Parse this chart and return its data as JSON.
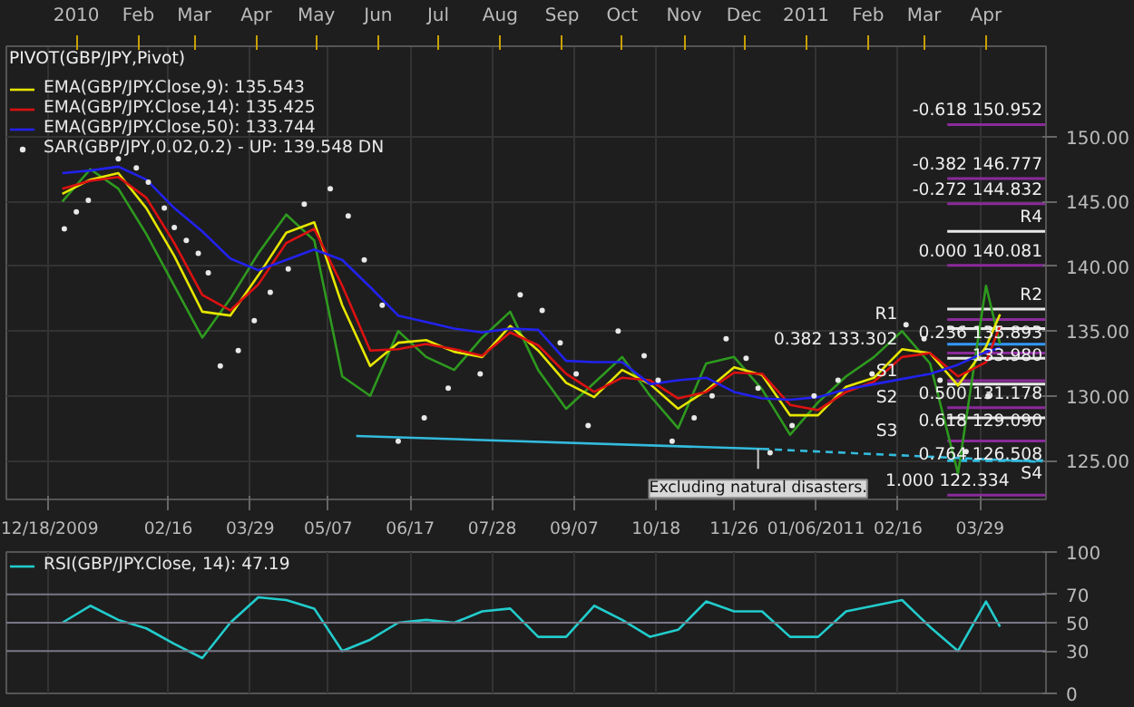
{
  "chart_data": [
    {
      "type": "line",
      "legend": "top left",
      "grid": true,
      "x": [
        "2009-12-25",
        "2010-01-08",
        "2010-01-22",
        "2010-02-05",
        "2010-02-19",
        "2010-03-05",
        "2010-03-19",
        "2010-04-02",
        "2010-04-16",
        "2010-04-30",
        "2010-05-14",
        "2010-05-28",
        "2010-06-11",
        "2010-06-25",
        "2010-07-09",
        "2010-07-23",
        "2010-08-06",
        "2010-08-20",
        "2010-09-03",
        "2010-09-17",
        "2010-10-01",
        "2010-10-15",
        "2010-10-29",
        "2010-11-12",
        "2010-11-26",
        "2010-12-10",
        "2010-12-24",
        "2011-01-07",
        "2011-01-21",
        "2011-02-04",
        "2011-02-18",
        "2011-03-04",
        "2011-03-18",
        "2011-04-01",
        "2011-04-08"
      ],
      "series": [
        {
          "color": "#2e9a1f",
          "values": [
            145.0,
            147.5,
            146.0,
            142.5,
            138.5,
            134.5,
            137.5,
            141.0,
            144.0,
            142.0,
            131.5,
            130.0,
            135.0,
            133.0,
            132.0,
            134.5,
            136.5,
            132.0,
            129.0,
            131.0,
            133.0,
            130.0,
            127.5,
            132.5,
            133.0,
            130.5,
            127.0,
            129.5,
            131.5,
            133.0,
            135.0,
            132.5,
            124.0,
            138.5,
            134.0
          ]
        },
        {
          "name": "EMA(GBP/JPY.Close,9): 135.543",
          "color": "#e6e600",
          "values": [
            145.6,
            146.7,
            147.2,
            144.5,
            140.8,
            136.5,
            136.2,
            139.3,
            142.6,
            143.4,
            137.0,
            132.3,
            134.1,
            134.3,
            133.4,
            133.0,
            135.4,
            133.5,
            131.0,
            129.9,
            132.0,
            130.9,
            129.0,
            130.4,
            132.2,
            131.6,
            128.5,
            128.5,
            130.7,
            131.4,
            133.6,
            133.3,
            130.8,
            133.8,
            136.3
          ]
        },
        {
          "name": "EMA(GBP/JPY.Close,14): 135.425",
          "color": "#dd1111",
          "values": [
            146.0,
            146.6,
            146.9,
            145.3,
            141.8,
            137.8,
            136.6,
            138.6,
            141.8,
            142.9,
            138.5,
            133.5,
            133.6,
            134.0,
            133.6,
            133.1,
            134.9,
            133.9,
            131.7,
            130.3,
            131.4,
            131.2,
            129.8,
            130.3,
            131.8,
            131.7,
            129.3,
            128.9,
            130.3,
            131.1,
            133.0,
            133.3,
            131.5,
            132.6,
            135.4
          ]
        },
        {
          "name": "EMA(GBP/JPY.Close,50): 133.744",
          "color": "#2222ee",
          "values": [
            147.2,
            147.4,
            147.7,
            146.7,
            144.5,
            142.7,
            140.6,
            139.7,
            140.5,
            141.3,
            140.5,
            138.4,
            136.2,
            135.7,
            135.2,
            134.9,
            135.2,
            135.1,
            132.7,
            132.6,
            132.6,
            130.9,
            131.2,
            131.4,
            130.3,
            129.8,
            129.7,
            129.9,
            130.5,
            130.9,
            131.3,
            131.7,
            132.4,
            133.4,
            133.7
          ]
        },
        {
          "name": "SAR(GBP/JPY,0.02,0.2) - UP: 139.548 DN",
          "type": "scatter",
          "marker": "circle",
          "color": "#e8e8e8",
          "x": [
            "2009-12-26",
            "2010-01-01",
            "2010-01-07",
            "2010-01-22",
            "2010-01-31",
            "2010-02-06",
            "2010-02-14",
            "2010-02-19",
            "2010-02-25",
            "2010-03-03",
            "2010-03-08",
            "2010-03-14",
            "2010-03-23",
            "2010-03-31",
            "2010-04-08",
            "2010-04-17",
            "2010-04-25",
            "2010-05-08",
            "2010-05-17",
            "2010-05-25",
            "2010-06-03",
            "2010-06-11",
            "2010-06-24",
            "2010-07-06",
            "2010-07-22",
            "2010-08-11",
            "2010-08-22",
            "2010-08-31",
            "2010-09-08",
            "2010-09-14",
            "2010-09-29",
            "2010-10-12",
            "2010-10-19",
            "2010-10-26",
            "2010-11-06",
            "2010-11-15",
            "2010-11-22",
            "2010-12-02",
            "2010-12-08",
            "2010-12-14",
            "2010-12-25",
            "2011-01-05",
            "2011-01-17",
            "2011-02-03",
            "2011-02-20",
            "2011-03-01",
            "2011-03-09",
            "2011-03-22",
            "2011-04-02"
          ],
          "values": [
            142.9,
            144.2,
            145.1,
            148.3,
            147.6,
            146.5,
            144.5,
            143.0,
            142.0,
            141.0,
            139.5,
            132.3,
            133.5,
            135.8,
            138.0,
            139.8,
            144.8,
            146.0,
            143.9,
            140.5,
            137.0,
            126.5,
            128.3,
            130.6,
            131.7,
            137.8,
            136.6,
            134.1,
            131.7,
            127.7,
            135.0,
            133.1,
            131.2,
            126.5,
            128.3,
            130.0,
            134.4,
            132.9,
            130.6,
            125.6,
            127.7,
            130.0,
            131.2,
            131.7,
            135.5,
            134.4,
            131.2,
            125.7,
            130.0
          ]
        },
        {
          "color": "#33bbdd",
          "x": [
            "2010-05-21",
            "2010-12-10"
          ],
          "values": [
            126.9,
            125.9
          ]
        },
        {
          "color": "#33bbdd",
          "line_style": "dashed",
          "x": [
            "2010-12-10",
            "2011-04-29"
          ],
          "values": [
            125.9,
            124.9
          ]
        }
      ],
      "xlim": [
        "2009-11-27",
        "2011-05-01"
      ],
      "x2lim": [
        "2009-11-27",
        "2011-05-01"
      ],
      "ylim": [
        122,
        157
      ],
      "yticks": [
        {
          "value": 125,
          "label": "125.00"
        },
        {
          "value": 130,
          "label": "130.00"
        },
        {
          "value": 135,
          "label": "135.00"
        },
        {
          "value": 140,
          "label": "140.00"
        },
        {
          "value": 145,
          "label": "145.00"
        },
        {
          "value": 150,
          "label": "150.00"
        }
      ],
      "xticks": [
        {
          "value": "2009-12-18",
          "label": "12/18/2009"
        },
        {
          "value": "2010-02-16",
          "label": "02/16"
        },
        {
          "value": "2010-03-29",
          "label": "03/29"
        },
        {
          "value": "2010-05-07",
          "label": "05/07"
        },
        {
          "value": "2010-06-17",
          "label": "06/17"
        },
        {
          "value": "2010-07-28",
          "label": "07/28"
        },
        {
          "value": "2010-09-07",
          "label": "09/07"
        },
        {
          "value": "2010-10-18",
          "label": "10/18"
        },
        {
          "value": "2010-11-26",
          "label": "11/26"
        },
        {
          "value": "2011-01-06",
          "label": "01/06/2011"
        },
        {
          "value": "2011-02-16",
          "label": "02/16"
        },
        {
          "value": "2011-03-29",
          "label": "03/29"
        }
      ],
      "x2ticks": [
        {
          "value": "2010-01-01",
          "label": "2010"
        },
        {
          "value": "2010-02-01",
          "label": "Feb"
        },
        {
          "value": "2010-03-01",
          "label": "Mar"
        },
        {
          "value": "2010-04-01",
          "label": "Apr"
        },
        {
          "value": "2010-05-01",
          "label": "May"
        },
        {
          "value": "2010-06-01",
          "label": "Jun"
        },
        {
          "value": "2010-07-01",
          "label": "Jul"
        },
        {
          "value": "2010-08-01",
          "label": "Aug"
        },
        {
          "value": "2010-09-01",
          "label": "Sep"
        },
        {
          "value": "2010-10-01",
          "label": "Oct"
        },
        {
          "value": "2010-11-01",
          "label": "Nov"
        },
        {
          "value": "2010-12-01",
          "label": "Dec"
        },
        {
          "value": "2011-01-01",
          "label": "2011"
        },
        {
          "value": "2011-02-01",
          "label": "Feb"
        },
        {
          "value": "2011-03-01",
          "label": "Mar"
        },
        {
          "value": "2011-04-01",
          "label": "Apr"
        }
      ],
      "ref_lines": [
        {
          "axis": "y",
          "value": 150.952,
          "label": "-0.618 150.952",
          "color": "#8a2a9a"
        },
        {
          "axis": "y",
          "value": 146.777,
          "label": "-0.382 146.777",
          "color": "#8a2a9a"
        },
        {
          "axis": "y",
          "value": 144.832,
          "label": "-0.272 144.832",
          "color": "#8a2a9a"
        },
        {
          "axis": "y",
          "value": 142.7,
          "label": "R4",
          "color": "#e8e8e8"
        },
        {
          "axis": "y",
          "value": 140.081,
          "label": "0.000 140.081",
          "color": "#8a2a9a"
        },
        {
          "axis": "y",
          "value": 136.7,
          "label": "R2",
          "color": "#e8e8e8"
        },
        {
          "axis": "y",
          "value": 135.893,
          "label": "0.236 135.893",
          "color": "#8a2a9a"
        },
        {
          "axis": "y",
          "value": 135.2,
          "label": "R1",
          "color": "#e8e8e8"
        },
        {
          "axis": "y",
          "value": 133.98,
          "label": "133.980",
          "color": "#3399ff"
        },
        {
          "axis": "y",
          "value": 133.302,
          "label": "0.382 133.302",
          "color": "#8a2a9a"
        },
        {
          "axis": "y",
          "value": 132.9,
          "label": "S1",
          "color": "#e8e8e8"
        },
        {
          "axis": "y",
          "value": 131.178,
          "label": "0.500 131.178",
          "color": "#8a2a9a"
        },
        {
          "axis": "y",
          "value": 130.9,
          "label": "S2",
          "color": "#e8e8e8"
        },
        {
          "axis": "y",
          "value": 129.09,
          "label": "0.618 129.090",
          "color": "#8a2a9a"
        },
        {
          "axis": "y",
          "value": 128.3,
          "label": "S3",
          "color": "#e8e8e8"
        },
        {
          "axis": "y",
          "value": 126.508,
          "label": "0.764 126.508",
          "color": "#8a2a9a"
        },
        {
          "axis": "y",
          "value": 125.0,
          "label": "S4",
          "color": "#33bbdd",
          "line_style": "dashed"
        },
        {
          "axis": "y",
          "value": 122.334,
          "label": "1.000 122.334",
          "color": "#8a2a9a"
        }
      ],
      "annotations": [
        "PIVOT(GBP/JPY,Pivot)",
        {
          "text": "Excluding natural disasters.",
          "x": "2010-12-08",
          "y": 125.9
        }
      ]
    },
    {
      "type": "line",
      "legend": "top left",
      "grid": "x",
      "tick_labels": "y",
      "x": [
        "2009-12-25",
        "2010-01-08",
        "2010-01-22",
        "2010-02-05",
        "2010-02-19",
        "2010-03-05",
        "2010-03-19",
        "2010-04-02",
        "2010-04-16",
        "2010-04-30",
        "2010-05-14",
        "2010-05-28",
        "2010-06-11",
        "2010-06-25",
        "2010-07-09",
        "2010-07-23",
        "2010-08-06",
        "2010-08-20",
        "2010-09-03",
        "2010-09-17",
        "2010-10-01",
        "2010-10-15",
        "2010-10-29",
        "2010-11-12",
        "2010-11-26",
        "2010-12-10",
        "2010-12-24",
        "2011-01-07",
        "2011-01-21",
        "2011-02-04",
        "2011-02-18",
        "2011-03-04",
        "2011-03-18",
        "2011-04-01",
        "2011-04-08"
      ],
      "series": [
        {
          "name": "RSI(GBP/JPY.Close, 14): 47.19",
          "color": "#22cccc",
          "values": [
            50,
            62,
            52,
            46,
            35,
            25,
            50,
            68,
            66,
            60,
            30,
            38,
            50,
            52,
            50,
            58,
            60,
            40,
            40,
            62,
            52,
            40,
            45,
            65,
            58,
            58,
            40,
            40,
            58,
            62,
            66,
            47,
            30,
            65,
            47.19
          ]
        }
      ],
      "xlim": [
        "2009-11-27",
        "2011-05-01"
      ],
      "xticks": [
        "2009-12-18",
        "2010-02-16",
        "2010-03-29",
        "2010-05-07",
        "2010-06-17",
        "2010-07-28",
        "2010-09-07",
        "2010-10-18",
        "2010-11-26",
        "2011-01-06",
        "2011-02-16",
        "2011-03-29"
      ],
      "ylim": [
        0,
        100
      ],
      "yticks": [
        0,
        30,
        50,
        70,
        100
      ],
      "ref_lines": [
        {
          "axis": "y",
          "value": 70,
          "color": "#777788"
        },
        {
          "axis": "y",
          "value": 50,
          "color": "#777788"
        },
        {
          "axis": "y",
          "value": 30,
          "color": "#777788"
        }
      ]
    }
  ]
}
